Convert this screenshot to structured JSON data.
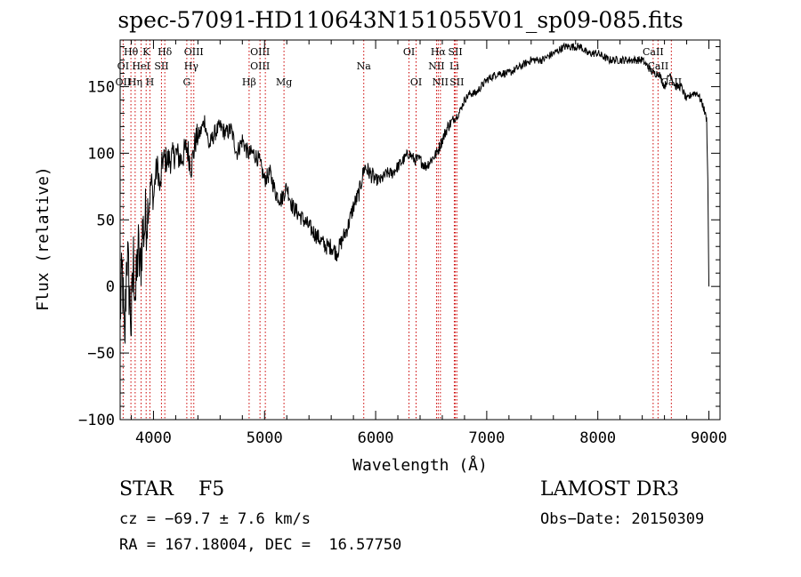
{
  "chart_data": {
    "type": "line",
    "title": "spec-57091-HD110643N151055V01_sp09-085.fits",
    "xlabel": "Wavelength (Å)",
    "ylabel": "Flux (relative)",
    "xlim": [
      3700,
      9100
    ],
    "ylim": [
      -100,
      185
    ],
    "xticks": [
      4000,
      5000,
      6000,
      7000,
      8000,
      9000
    ],
    "yticks": [
      -100,
      -50,
      0,
      50,
      100,
      150
    ],
    "xtick_labels": [
      "4000",
      "5000",
      "6000",
      "7000",
      "8000",
      "9000"
    ],
    "ytick_labels": [
      "−100",
      "−50",
      "0",
      "50",
      "100",
      "150"
    ],
    "series": [
      {
        "name": "flux",
        "x": [
          3700,
          3720,
          3740,
          3760,
          3780,
          3800,
          3820,
          3840,
          3860,
          3880,
          3900,
          3920,
          3940,
          3960,
          3980,
          4000,
          4020,
          4040,
          4060,
          4080,
          4100,
          4150,
          4200,
          4250,
          4300,
          4340,
          4380,
          4420,
          4460,
          4500,
          4550,
          4600,
          4650,
          4700,
          4750,
          4800,
          4850,
          4900,
          4950,
          5000,
          5050,
          5100,
          5150,
          5200,
          5250,
          5300,
          5350,
          5400,
          5450,
          5500,
          5550,
          5600,
          5650,
          5700,
          5750,
          5800,
          5850,
          5900,
          5950,
          6000,
          6050,
          6100,
          6150,
          6200,
          6250,
          6300,
          6350,
          6400,
          6450,
          6500,
          6550,
          6600,
          6650,
          6700,
          6750,
          6800,
          6850,
          6900,
          6950,
          7000,
          7100,
          7200,
          7300,
          7400,
          7500,
          7600,
          7700,
          7800,
          7850,
          7900,
          7950,
          8000,
          8100,
          8200,
          8300,
          8400,
          8500,
          8550,
          8600,
          8650,
          8700,
          8750,
          8800,
          8850,
          8900,
          8950,
          8980,
          8990,
          9000
        ],
        "y": [
          -20,
          10,
          -50,
          30,
          0,
          -30,
          20,
          -10,
          30,
          10,
          40,
          45,
          55,
          60,
          80,
          65,
          85,
          90,
          70,
          95,
          95,
          95,
          100,
          95,
          105,
          90,
          110,
          115,
          125,
          105,
          115,
          120,
          115,
          118,
          100,
          110,
          100,
          100,
          95,
          80,
          85,
          70,
          65,
          75,
          60,
          55,
          50,
          45,
          40,
          35,
          30,
          30,
          25,
          35,
          45,
          60,
          70,
          90,
          85,
          80,
          80,
          85,
          85,
          90,
          95,
          100,
          95,
          95,
          90,
          95,
          100,
          110,
          120,
          125,
          130,
          140,
          145,
          145,
          150,
          155,
          160,
          160,
          165,
          170,
          170,
          175,
          180,
          180,
          180,
          175,
          175,
          175,
          170,
          170,
          170,
          170,
          160,
          160,
          150,
          160,
          150,
          150,
          140,
          145,
          145,
          135,
          125,
          80,
          0
        ]
      }
    ],
    "annotations": [
      {
        "label": "Hθ",
        "x": 3797,
        "row": 1
      },
      {
        "label": "K",
        "x": 3934,
        "row": 1
      },
      {
        "label": "Hδ",
        "x": 4102,
        "row": 1
      },
      {
        "label": "OIII",
        "x": 4363,
        "row": 1
      },
      {
        "label": "OIII",
        "x": 4959,
        "row": 1
      },
      {
        "label": "OI",
        "x": 6300,
        "row": 1
      },
      {
        "label": "Hα",
        "x": 6563,
        "row": 1
      },
      {
        "label": "SII",
        "x": 6717,
        "row": 1
      },
      {
        "label": "CaII",
        "x": 8498,
        "row": 1
      },
      {
        "label": "OI",
        "x": 3727,
        "row": 2
      },
      {
        "label": "HeI",
        "x": 3889,
        "row": 2
      },
      {
        "label": "SII",
        "x": 4072,
        "row": 2
      },
      {
        "label": "Hγ",
        "x": 4340,
        "row": 2
      },
      {
        "label": "OIII",
        "x": 4959,
        "row": 2
      },
      {
        "label": "Na",
        "x": 5893,
        "row": 2
      },
      {
        "label": "NII",
        "x": 6548,
        "row": 2
      },
      {
        "label": "Li",
        "x": 6708,
        "row": 2
      },
      {
        "label": "CaII",
        "x": 8542,
        "row": 2
      },
      {
        "label": "OII",
        "x": 3727,
        "row": 3
      },
      {
        "label": "Hη",
        "x": 3835,
        "row": 3
      },
      {
        "label": "H",
        "x": 3968,
        "row": 3
      },
      {
        "label": "G",
        "x": 4300,
        "row": 3
      },
      {
        "label": "Hβ",
        "x": 4861,
        "row": 3
      },
      {
        "label": "Mg",
        "x": 5175,
        "row": 3
      },
      {
        "label": "OI",
        "x": 6364,
        "row": 3
      },
      {
        "label": "NII",
        "x": 6583,
        "row": 3
      },
      {
        "label": "SII",
        "x": 6731,
        "row": 3
      },
      {
        "label": "CaII",
        "x": 8662,
        "row": 3
      }
    ],
    "line_markers": [
      3727,
      3797,
      3835,
      3889,
      3934,
      3968,
      4072,
      4102,
      4300,
      4340,
      4363,
      4861,
      4959,
      5007,
      5175,
      5893,
      6300,
      6364,
      6548,
      6563,
      6583,
      6708,
      6717,
      6731,
      8498,
      8542,
      8662
    ],
    "colors": {
      "spectrum": "#000000",
      "markers": "#cc0000"
    }
  },
  "info": {
    "object_line": "STAR    F5",
    "survey": "LAMOST DR3",
    "cz": "cz = −69.7 ± 7.6 km/s",
    "obs_date": "Obs−Date: 20150309",
    "radec": "RA = 167.18004, DEC =  16.57750"
  }
}
